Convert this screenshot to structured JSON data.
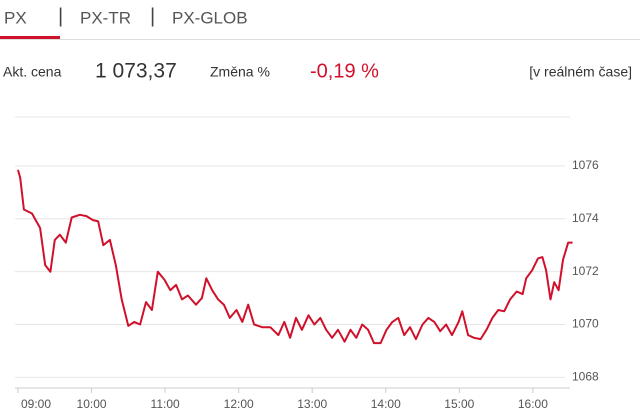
{
  "tabs": [
    "PX",
    "PX-TR",
    "PX-GLOB"
  ],
  "quote": {
    "price_label": "Akt. cena",
    "price": "1 073,37",
    "change_label": "Změna %",
    "change": "-0,19 %",
    "mode": "[v reálném čase]"
  },
  "chart_data": {
    "type": "line",
    "color": "#d0112b",
    "grid": true,
    "x": [
      9.0,
      9.03,
      9.08,
      9.19,
      9.3,
      9.37,
      9.44,
      9.5,
      9.57,
      9.65,
      9.73,
      9.84,
      9.93,
      10.02,
      10.09,
      10.16,
      10.25,
      10.33,
      10.41,
      10.5,
      10.58,
      10.66,
      10.74,
      10.82,
      10.9,
      10.99,
      11.07,
      11.15,
      11.23,
      11.31,
      11.42,
      11.5,
      11.56,
      11.64,
      11.72,
      11.8,
      11.88,
      11.97,
      12.05,
      12.13,
      12.21,
      12.32,
      12.43,
      12.54,
      12.62,
      12.7,
      12.78,
      12.86,
      12.95,
      13.03,
      13.11,
      13.19,
      13.27,
      13.35,
      13.44,
      13.52,
      13.6,
      13.68,
      13.76,
      13.84,
      13.93,
      14.01,
      14.09,
      14.17,
      14.25,
      14.33,
      14.41,
      14.5,
      14.58,
      14.66,
      14.74,
      14.82,
      14.9,
      14.99,
      15.04,
      15.12,
      15.2,
      15.29,
      15.37,
      15.45,
      15.53,
      15.61,
      15.69,
      15.78,
      15.86,
      15.91,
      15.99,
      16.07,
      16.13,
      16.18,
      16.24,
      16.29,
      16.35,
      16.41,
      16.48,
      16.54
    ],
    "values": [
      1075.85,
      1075.55,
      1074.35,
      1074.2,
      1073.65,
      1072.25,
      1072.0,
      1073.2,
      1073.4,
      1073.1,
      1074.05,
      1074.15,
      1074.1,
      1073.95,
      1073.9,
      1073.0,
      1073.2,
      1072.25,
      1070.95,
      1069.95,
      1070.1,
      1070.0,
      1070.85,
      1070.55,
      1072.0,
      1071.7,
      1071.3,
      1071.5,
      1070.95,
      1071.1,
      1070.75,
      1071.0,
      1071.75,
      1071.3,
      1070.95,
      1070.75,
      1070.25,
      1070.55,
      1070.1,
      1070.75,
      1070.0,
      1069.9,
      1069.9,
      1069.6,
      1070.1,
      1069.5,
      1070.25,
      1069.8,
      1070.35,
      1070.0,
      1070.25,
      1069.8,
      1069.5,
      1069.8,
      1069.35,
      1069.8,
      1069.5,
      1070.0,
      1069.8,
      1069.3,
      1069.3,
      1069.8,
      1070.1,
      1070.25,
      1069.6,
      1069.9,
      1069.45,
      1070.0,
      1070.25,
      1070.1,
      1069.75,
      1070.0,
      1069.6,
      1070.1,
      1070.5,
      1069.6,
      1069.5,
      1069.45,
      1069.8,
      1070.25,
      1070.55,
      1070.5,
      1070.95,
      1071.25,
      1071.15,
      1071.75,
      1072.05,
      1072.5,
      1072.55,
      1072.05,
      1070.95,
      1071.6,
      1071.3,
      1072.45,
      1073.1,
      1073.1
    ],
    "xlim": [
      9.0,
      16.6
    ],
    "xticks": [
      {
        "value": 9,
        "label": "09:00"
      },
      {
        "value": 10,
        "label": "10:00"
      },
      {
        "value": 11,
        "label": "11:00"
      },
      {
        "value": 12,
        "label": "12:00"
      },
      {
        "value": 13,
        "label": "13:00"
      },
      {
        "value": 14,
        "label": "14:00"
      },
      {
        "value": 15,
        "label": "15:00"
      },
      {
        "value": 16,
        "label": "16:00"
      }
    ],
    "ylim": [
      1067.6,
      1077.85
    ],
    "yticks": [
      1068,
      1070,
      1072,
      1074,
      1076
    ]
  }
}
